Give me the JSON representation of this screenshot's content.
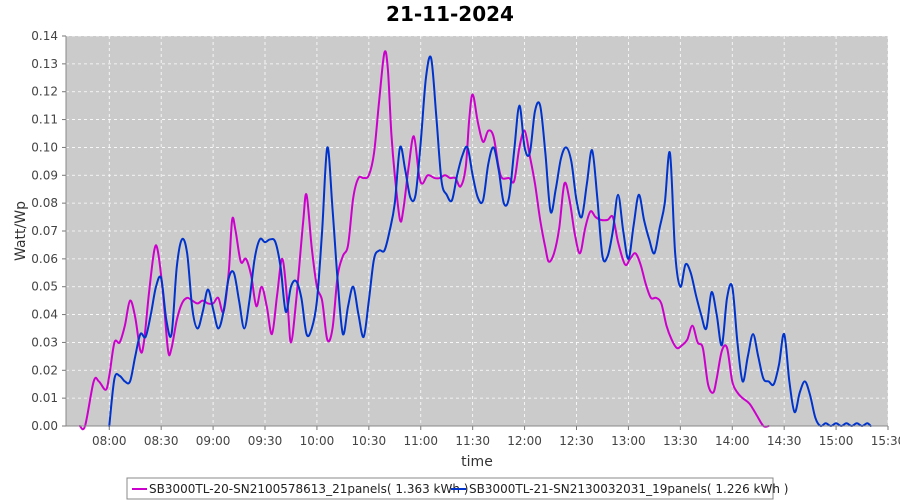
{
  "chart_data": {
    "type": "line",
    "title": "21-11-2024",
    "xlabel": "time",
    "ylabel": "Watt/Wp",
    "xlim": [
      "07:35",
      "15:30"
    ],
    "ylim": [
      0,
      0.14
    ],
    "grid": true,
    "legend_position": "bottom",
    "x_ticks": [
      "08:00",
      "08:30",
      "09:00",
      "09:30",
      "10:00",
      "10:30",
      "11:00",
      "11:30",
      "12:00",
      "12:30",
      "13:00",
      "13:30",
      "14:00",
      "14:30",
      "15:00",
      "15:30"
    ],
    "y_ticks": [
      "0.00",
      "0.01",
      "0.02",
      "0.03",
      "0.04",
      "0.05",
      "0.06",
      "0.07",
      "0.08",
      "0.09",
      "0.10",
      "0.11",
      "0.12",
      "0.13",
      "0.14"
    ],
    "series": [
      {
        "name": "SB3000TL-20-SN2100578613_21panels( 1.363 kWh )",
        "color": "#cc00cc",
        "points": [
          [
            "07:43",
            0.0
          ],
          [
            "07:46",
            0.0
          ],
          [
            "07:51",
            0.016
          ],
          [
            "07:54",
            0.016
          ],
          [
            "07:58",
            0.013
          ],
          [
            "08:00",
            0.018
          ],
          [
            "08:03",
            0.03
          ],
          [
            "08:06",
            0.03
          ],
          [
            "08:09",
            0.036
          ],
          [
            "08:12",
            0.045
          ],
          [
            "08:15",
            0.039
          ],
          [
            "08:18",
            0.027
          ],
          [
            "08:20",
            0.03
          ],
          [
            "08:23",
            0.048
          ],
          [
            "08:26",
            0.063
          ],
          [
            "08:28",
            0.063
          ],
          [
            "08:31",
            0.048
          ],
          [
            "08:34",
            0.027
          ],
          [
            "08:36",
            0.028
          ],
          [
            "08:39",
            0.038
          ],
          [
            "08:42",
            0.044
          ],
          [
            "08:45",
            0.046
          ],
          [
            "08:48",
            0.045
          ],
          [
            "08:51",
            0.044
          ],
          [
            "08:54",
            0.045
          ],
          [
            "08:57",
            0.044
          ],
          [
            "09:00",
            0.044
          ],
          [
            "09:03",
            0.046
          ],
          [
            "09:06",
            0.041
          ],
          [
            "09:09",
            0.055
          ],
          [
            "09:11",
            0.074
          ],
          [
            "09:13",
            0.07
          ],
          [
            "09:16",
            0.059
          ],
          [
            "09:19",
            0.06
          ],
          [
            "09:22",
            0.054
          ],
          [
            "09:25",
            0.043
          ],
          [
            "09:28",
            0.05
          ],
          [
            "09:31",
            0.043
          ],
          [
            "09:34",
            0.033
          ],
          [
            "09:37",
            0.047
          ],
          [
            "09:40",
            0.06
          ],
          [
            "09:43",
            0.044
          ],
          [
            "09:45",
            0.03
          ],
          [
            "09:48",
            0.045
          ],
          [
            "09:52",
            0.073
          ],
          [
            "09:54",
            0.083
          ],
          [
            "09:57",
            0.064
          ],
          [
            "10:00",
            0.05
          ],
          [
            "10:03",
            0.045
          ],
          [
            "10:06",
            0.031
          ],
          [
            "10:09",
            0.035
          ],
          [
            "10:12",
            0.054
          ],
          [
            "10:15",
            0.061
          ],
          [
            "10:18",
            0.065
          ],
          [
            "10:21",
            0.082
          ],
          [
            "10:24",
            0.089
          ],
          [
            "10:27",
            0.089
          ],
          [
            "10:30",
            0.09
          ],
          [
            "10:33",
            0.098
          ],
          [
            "10:36",
            0.117
          ],
          [
            "10:39",
            0.134
          ],
          [
            "10:41",
            0.128
          ],
          [
            "10:43",
            0.105
          ],
          [
            "10:45",
            0.09
          ],
          [
            "10:48",
            0.074
          ],
          [
            "10:50",
            0.078
          ],
          [
            "10:53",
            0.093
          ],
          [
            "10:56",
            0.104
          ],
          [
            "10:59",
            0.09
          ],
          [
            "11:01",
            0.087
          ],
          [
            "11:04",
            0.09
          ],
          [
            "11:08",
            0.089
          ],
          [
            "11:11",
            0.089
          ],
          [
            "11:14",
            0.09
          ],
          [
            "11:17",
            0.089
          ],
          [
            "11:20",
            0.089
          ],
          [
            "11:23",
            0.086
          ],
          [
            "11:26",
            0.093
          ],
          [
            "11:28",
            0.11
          ],
          [
            "11:30",
            0.119
          ],
          [
            "11:33",
            0.109
          ],
          [
            "11:36",
            0.102
          ],
          [
            "11:39",
            0.106
          ],
          [
            "11:42",
            0.104
          ],
          [
            "11:45",
            0.093
          ],
          [
            "11:47",
            0.089
          ],
          [
            "11:51",
            0.089
          ],
          [
            "11:54",
            0.088
          ],
          [
            "11:57",
            0.1
          ],
          [
            "12:00",
            0.106
          ],
          [
            "12:03",
            0.097
          ],
          [
            "12:06",
            0.087
          ],
          [
            "12:09",
            0.074
          ],
          [
            "12:12",
            0.064
          ],
          [
            "12:14",
            0.059
          ],
          [
            "12:17",
            0.062
          ],
          [
            "12:20",
            0.071
          ],
          [
            "12:23",
            0.087
          ],
          [
            "12:26",
            0.081
          ],
          [
            "12:29",
            0.069
          ],
          [
            "12:32",
            0.062
          ],
          [
            "12:35",
            0.071
          ],
          [
            "12:38",
            0.077
          ],
          [
            "12:41",
            0.075
          ],
          [
            "12:44",
            0.074
          ],
          [
            "12:48",
            0.074
          ],
          [
            "12:51",
            0.075
          ],
          [
            "12:54",
            0.066
          ],
          [
            "12:58",
            0.058
          ],
          [
            "13:01",
            0.06
          ],
          [
            "13:04",
            0.062
          ],
          [
            "13:07",
            0.058
          ],
          [
            "13:10",
            0.051
          ],
          [
            "13:13",
            0.046
          ],
          [
            "13:16",
            0.046
          ],
          [
            "13:19",
            0.044
          ],
          [
            "13:22",
            0.036
          ],
          [
            "13:25",
            0.031
          ],
          [
            "13:28",
            0.028
          ],
          [
            "13:31",
            0.029
          ],
          [
            "13:34",
            0.031
          ],
          [
            "13:37",
            0.036
          ],
          [
            "13:40",
            0.03
          ],
          [
            "13:43",
            0.028
          ],
          [
            "13:46",
            0.015
          ],
          [
            "13:49",
            0.012
          ],
          [
            "13:51",
            0.017
          ],
          [
            "13:54",
            0.027
          ],
          [
            "13:57",
            0.028
          ],
          [
            "14:00",
            0.016
          ],
          [
            "14:03",
            0.012
          ],
          [
            "14:06",
            0.01
          ],
          [
            "14:10",
            0.008
          ],
          [
            "14:14",
            0.004
          ],
          [
            "14:18",
            0.0
          ],
          [
            "14:21",
            0.0
          ]
        ]
      },
      {
        "name": "SB3000TL-21-SN2130032031_19panels( 1.226 kWh )",
        "color": "#0033cc",
        "points": [
          [
            "08:00",
            0.0
          ],
          [
            "08:03",
            0.017
          ],
          [
            "08:06",
            0.018
          ],
          [
            "08:09",
            0.016
          ],
          [
            "08:12",
            0.016
          ],
          [
            "08:15",
            0.025
          ],
          [
            "08:18",
            0.033
          ],
          [
            "08:21",
            0.032
          ],
          [
            "08:24",
            0.04
          ],
          [
            "08:27",
            0.05
          ],
          [
            "08:30",
            0.053
          ],
          [
            "08:33",
            0.038
          ],
          [
            "08:36",
            0.033
          ],
          [
            "08:39",
            0.057
          ],
          [
            "08:42",
            0.067
          ],
          [
            "08:45",
            0.062
          ],
          [
            "08:48",
            0.042
          ],
          [
            "08:51",
            0.035
          ],
          [
            "08:54",
            0.041
          ],
          [
            "08:57",
            0.049
          ],
          [
            "09:00",
            0.042
          ],
          [
            "09:03",
            0.035
          ],
          [
            "09:06",
            0.041
          ],
          [
            "09:09",
            0.053
          ],
          [
            "09:12",
            0.055
          ],
          [
            "09:15",
            0.045
          ],
          [
            "09:18",
            0.035
          ],
          [
            "09:21",
            0.045
          ],
          [
            "09:24",
            0.06
          ],
          [
            "09:27",
            0.067
          ],
          [
            "09:30",
            0.066
          ],
          [
            "09:33",
            0.067
          ],
          [
            "09:36",
            0.066
          ],
          [
            "09:39",
            0.057
          ],
          [
            "09:42",
            0.041
          ],
          [
            "09:45",
            0.05
          ],
          [
            "09:48",
            0.052
          ],
          [
            "09:51",
            0.046
          ],
          [
            "09:54",
            0.033
          ],
          [
            "09:57",
            0.035
          ],
          [
            "10:00",
            0.045
          ],
          [
            "10:03",
            0.07
          ],
          [
            "10:06",
            0.1
          ],
          [
            "10:09",
            0.078
          ],
          [
            "10:12",
            0.052
          ],
          [
            "10:15",
            0.033
          ],
          [
            "10:18",
            0.043
          ],
          [
            "10:21",
            0.05
          ],
          [
            "10:24",
            0.04
          ],
          [
            "10:27",
            0.032
          ],
          [
            "10:30",
            0.045
          ],
          [
            "10:33",
            0.06
          ],
          [
            "10:36",
            0.063
          ],
          [
            "10:39",
            0.063
          ],
          [
            "10:42",
            0.07
          ],
          [
            "10:45",
            0.08
          ],
          [
            "10:48",
            0.1
          ],
          [
            "10:51",
            0.092
          ],
          [
            "10:54",
            0.082
          ],
          [
            "10:57",
            0.083
          ],
          [
            "11:00",
            0.102
          ],
          [
            "11:03",
            0.125
          ],
          [
            "11:06",
            0.132
          ],
          [
            "11:09",
            0.111
          ],
          [
            "11:12",
            0.088
          ],
          [
            "11:15",
            0.083
          ],
          [
            "11:18",
            0.081
          ],
          [
            "11:21",
            0.09
          ],
          [
            "11:24",
            0.097
          ],
          [
            "11:27",
            0.1
          ],
          [
            "11:30",
            0.09
          ],
          [
            "11:33",
            0.082
          ],
          [
            "11:36",
            0.081
          ],
          [
            "11:39",
            0.094
          ],
          [
            "11:42",
            0.1
          ],
          [
            "11:45",
            0.092
          ],
          [
            "11:48",
            0.08
          ],
          [
            "11:51",
            0.082
          ],
          [
            "11:54",
            0.099
          ],
          [
            "11:57",
            0.115
          ],
          [
            "12:00",
            0.1
          ],
          [
            "12:03",
            0.098
          ],
          [
            "12:06",
            0.113
          ],
          [
            "12:09",
            0.115
          ],
          [
            "12:12",
            0.098
          ],
          [
            "12:15",
            0.077
          ],
          [
            "12:18",
            0.085
          ],
          [
            "12:21",
            0.096
          ],
          [
            "12:24",
            0.1
          ],
          [
            "12:27",
            0.095
          ],
          [
            "12:30",
            0.081
          ],
          [
            "12:33",
            0.075
          ],
          [
            "12:36",
            0.087
          ],
          [
            "12:39",
            0.099
          ],
          [
            "12:42",
            0.082
          ],
          [
            "12:45",
            0.061
          ],
          [
            "12:48",
            0.061
          ],
          [
            "12:51",
            0.07
          ],
          [
            "12:54",
            0.083
          ],
          [
            "12:57",
            0.07
          ],
          [
            "13:00",
            0.06
          ],
          [
            "13:03",
            0.072
          ],
          [
            "13:06",
            0.083
          ],
          [
            "13:09",
            0.074
          ],
          [
            "13:12",
            0.067
          ],
          [
            "13:15",
            0.062
          ],
          [
            "13:18",
            0.071
          ],
          [
            "13:21",
            0.08
          ],
          [
            "13:24",
            0.098
          ],
          [
            "13:27",
            0.062
          ],
          [
            "13:30",
            0.05
          ],
          [
            "13:33",
            0.058
          ],
          [
            "13:36",
            0.055
          ],
          [
            "13:39",
            0.047
          ],
          [
            "13:42",
            0.04
          ],
          [
            "13:45",
            0.035
          ],
          [
            "13:48",
            0.048
          ],
          [
            "13:51",
            0.04
          ],
          [
            "13:54",
            0.029
          ],
          [
            "13:57",
            0.046
          ],
          [
            "14:00",
            0.05
          ],
          [
            "14:03",
            0.03
          ],
          [
            "14:06",
            0.016
          ],
          [
            "14:09",
            0.025
          ],
          [
            "14:12",
            0.033
          ],
          [
            "14:15",
            0.025
          ],
          [
            "14:18",
            0.017
          ],
          [
            "14:21",
            0.016
          ],
          [
            "14:24",
            0.015
          ],
          [
            "14:27",
            0.022
          ],
          [
            "14:30",
            0.033
          ],
          [
            "14:33",
            0.016
          ],
          [
            "14:36",
            0.005
          ],
          [
            "14:39",
            0.012
          ],
          [
            "14:42",
            0.016
          ],
          [
            "14:45",
            0.011
          ],
          [
            "14:48",
            0.003
          ],
          [
            "14:51",
            0.0
          ],
          [
            "14:54",
            0.001
          ],
          [
            "14:57",
            0.0
          ],
          [
            "15:00",
            0.001
          ],
          [
            "15:03",
            0.0
          ],
          [
            "15:06",
            0.001
          ],
          [
            "15:09",
            0.0
          ],
          [
            "15:12",
            0.001
          ],
          [
            "15:15",
            0.0
          ],
          [
            "15:18",
            0.001
          ],
          [
            "15:20",
            0.0
          ]
        ]
      }
    ]
  }
}
